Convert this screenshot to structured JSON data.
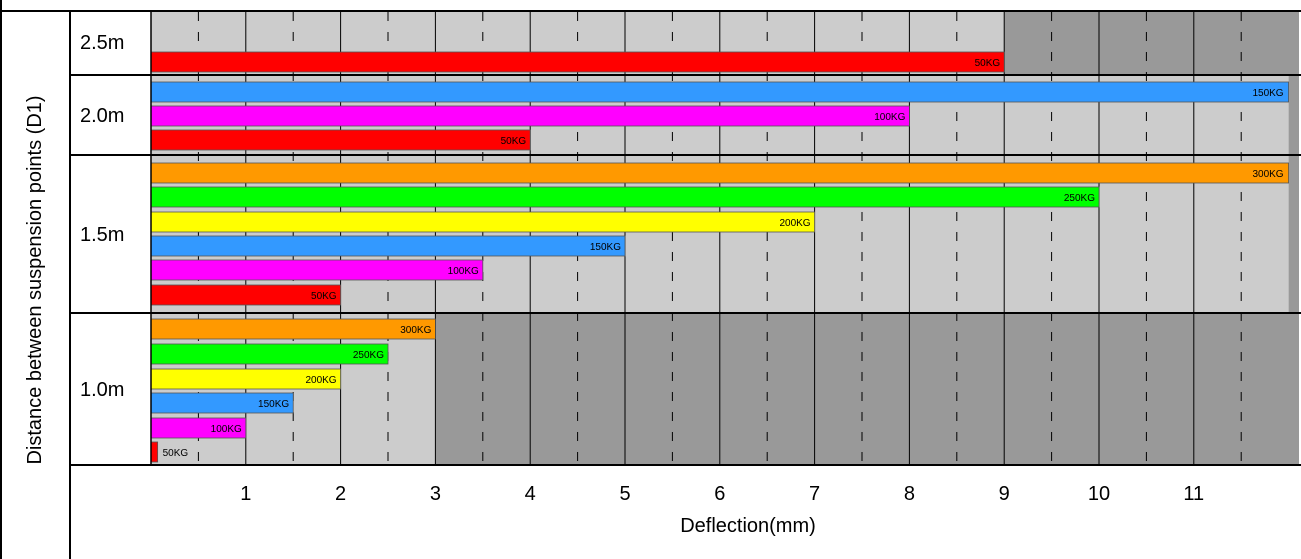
{
  "chart_data": {
    "type": "bar",
    "orientation": "horizontal",
    "xlabel": "Deflection(mm)",
    "ylabel": "Distance between suspension points (D1)",
    "x_ticks": [
      1,
      2,
      3,
      4,
      5,
      6,
      7,
      8,
      9,
      10,
      11
    ],
    "xlim": [
      0,
      12
    ],
    "grid": true,
    "colors": {
      "50KG": "#ff0000",
      "100KG": "#ff00ff",
      "150KG": "#3399ff",
      "200KG": "#ffff00",
      "250KG": "#00ff00",
      "300KG": "#ff9900",
      "panel_light": "#cccccc",
      "panel_dark": "#999999"
    },
    "groups": [
      {
        "name": "2.5m",
        "bars": [
          {
            "label": "50KG",
            "value": 9.0
          }
        ]
      },
      {
        "name": "2.0m",
        "bars": [
          {
            "label": "150KG",
            "value": 12.0
          },
          {
            "label": "100KG",
            "value": 8.0
          },
          {
            "label": "50KG",
            "value": 4.0
          }
        ]
      },
      {
        "name": "1.5m",
        "bars": [
          {
            "label": "300KG",
            "value": 12.0
          },
          {
            "label": "250KG",
            "value": 10.0
          },
          {
            "label": "200KG",
            "value": 7.0
          },
          {
            "label": "150KG",
            "value": 5.0
          },
          {
            "label": "100KG",
            "value": 3.5
          },
          {
            "label": "50KG",
            "value": 2.0
          }
        ]
      },
      {
        "name": "1.0m",
        "bars": [
          {
            "label": "300KG",
            "value": 3.0
          },
          {
            "label": "250KG",
            "value": 2.5
          },
          {
            "label": "200KG",
            "value": 2.0
          },
          {
            "label": "150KG",
            "value": 1.5
          },
          {
            "label": "100KG",
            "value": 1.0
          },
          {
            "label": "50KG",
            "value": 0.07
          }
        ]
      }
    ]
  }
}
